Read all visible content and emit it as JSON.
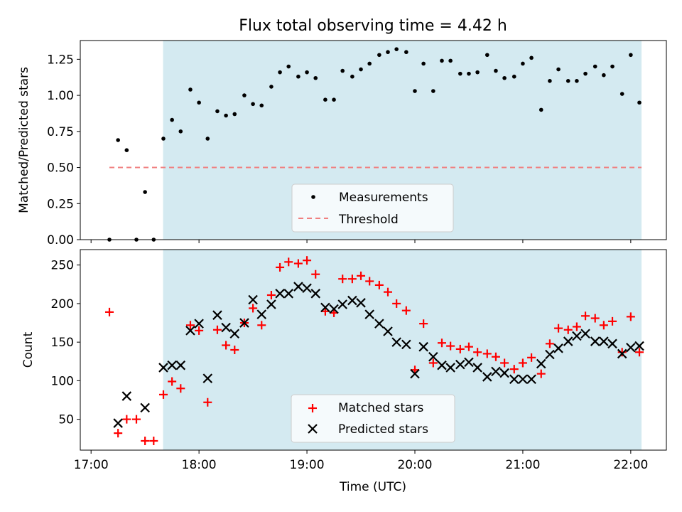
{
  "chart_data": [
    {
      "type": "scatter",
      "title": "Flux total observing time = 4.42 h",
      "xlabel": "",
      "ylabel": "Matched/Predicted stars",
      "xlim": [
        16.9,
        22.33
      ],
      "ylim": [
        0,
        1.38
      ],
      "yticks": [
        "0.00",
        "0.25",
        "0.50",
        "0.75",
        "1.00",
        "1.25"
      ],
      "ytick_values": [
        0,
        0.25,
        0.5,
        0.75,
        1.0,
        1.25
      ],
      "shaded_range": [
        17.667,
        22.1
      ],
      "shade_color": "#d4eaf1",
      "threshold": {
        "name": "Threshold",
        "value": 0.5,
        "x_range": [
          17.17,
          22.1
        ],
        "color": "#f08080"
      },
      "series": [
        {
          "name": "Measurements",
          "color": "#000000",
          "x": [
            17.17,
            17.25,
            17.33,
            17.42,
            17.5,
            17.58,
            17.67,
            17.75,
            17.83,
            17.92,
            18.0,
            18.08,
            18.17,
            18.25,
            18.33,
            18.42,
            18.5,
            18.58,
            18.67,
            18.75,
            18.83,
            18.92,
            19.0,
            19.08,
            19.17,
            19.25,
            19.33,
            19.42,
            19.5,
            19.58,
            19.67,
            19.75,
            19.83,
            19.92,
            20.0,
            20.08,
            20.17,
            20.25,
            20.33,
            20.42,
            20.5,
            20.58,
            20.67,
            20.75,
            20.83,
            20.92,
            21.0,
            21.08,
            21.17,
            21.25,
            21.33,
            21.42,
            21.5,
            21.58,
            21.67,
            21.75,
            21.83,
            21.92,
            22.0,
            22.08
          ],
          "y": [
            0.0,
            0.69,
            0.62,
            0.0,
            0.33,
            0.0,
            0.7,
            0.83,
            0.75,
            1.04,
            0.95,
            0.7,
            0.89,
            0.86,
            0.87,
            1.0,
            0.94,
            0.93,
            1.06,
            1.16,
            1.2,
            1.13,
            1.16,
            1.12,
            0.97,
            0.97,
            1.17,
            1.13,
            1.18,
            1.22,
            1.28,
            1.3,
            1.32,
            1.3,
            1.03,
            1.22,
            1.03,
            1.24,
            1.24,
            1.15,
            1.15,
            1.16,
            1.28,
            1.17,
            1.12,
            1.13,
            1.22,
            1.26,
            0.9,
            1.1,
            1.18,
            1.1,
            1.1,
            1.15,
            1.2,
            1.14,
            1.2,
            1.01,
            1.28,
            0.95
          ]
        }
      ],
      "legend": [
        "Measurements",
        "Threshold"
      ],
      "legend_position": "bottom-center"
    },
    {
      "type": "scatter",
      "title": "",
      "xlabel": "Time (UTC)",
      "ylabel": "Count",
      "xlim": [
        16.9,
        22.33
      ],
      "ylim": [
        10,
        270
      ],
      "yticks": [
        "50",
        "100",
        "150",
        "200",
        "250"
      ],
      "ytick_values": [
        50,
        100,
        150,
        200,
        250
      ],
      "xticks": [
        "17:00",
        "18:00",
        "19:00",
        "20:00",
        "21:00",
        "22:00"
      ],
      "xtick_values": [
        17,
        18,
        19,
        20,
        21,
        22
      ],
      "shaded_range": [
        17.667,
        22.1
      ],
      "shade_color": "#d4eaf1",
      "series": [
        {
          "name": "Matched stars",
          "color": "#ff0000",
          "marker": "plus",
          "x": [
            17.17,
            17.25,
            17.33,
            17.42,
            17.5,
            17.58,
            17.67,
            17.75,
            17.83,
            17.92,
            18.0,
            18.08,
            18.17,
            18.25,
            18.33,
            18.42,
            18.5,
            18.58,
            18.67,
            18.75,
            18.83,
            18.92,
            19.0,
            19.08,
            19.17,
            19.25,
            19.33,
            19.42,
            19.5,
            19.58,
            19.67,
            19.75,
            19.83,
            19.92,
            20.0,
            20.08,
            20.17,
            20.25,
            20.33,
            20.42,
            20.5,
            20.58,
            20.67,
            20.75,
            20.83,
            20.92,
            21.0,
            21.08,
            21.17,
            21.25,
            21.33,
            21.42,
            21.5,
            21.58,
            21.67,
            21.75,
            21.83,
            21.92,
            22.0,
            22.08
          ],
          "y": [
            189,
            32,
            50,
            50,
            22,
            22,
            82,
            99,
            90,
            172,
            165,
            72,
            166,
            146,
            140,
            175,
            194,
            172,
            211,
            247,
            254,
            252,
            256,
            238,
            190,
            188,
            232,
            232,
            236,
            229,
            224,
            215,
            200,
            191,
            114,
            174,
            123,
            149,
            145,
            141,
            144,
            137,
            135,
            131,
            123,
            115,
            123,
            130,
            109,
            148,
            168,
            166,
            170,
            184,
            181,
            172,
            177,
            137,
            183,
            137
          ]
        },
        {
          "name": "Predicted stars",
          "color": "#000000",
          "marker": "x",
          "x": [
            17.25,
            17.33,
            17.5,
            17.67,
            17.75,
            17.83,
            17.92,
            18.0,
            18.08,
            18.17,
            18.25,
            18.33,
            18.42,
            18.5,
            18.58,
            18.67,
            18.75,
            18.83,
            18.92,
            19.0,
            19.08,
            19.17,
            19.25,
            19.33,
            19.42,
            19.5,
            19.58,
            19.67,
            19.75,
            19.83,
            19.92,
            20.0,
            20.08,
            20.17,
            20.25,
            20.33,
            20.42,
            20.5,
            20.58,
            20.67,
            20.75,
            20.83,
            20.92,
            21.0,
            21.08,
            21.17,
            21.25,
            21.33,
            21.42,
            21.5,
            21.58,
            21.67,
            21.75,
            21.83,
            21.92,
            22.0,
            22.08
          ],
          "y": [
            45,
            80,
            65,
            117,
            120,
            120,
            165,
            174,
            103,
            185,
            169,
            161,
            175,
            205,
            186,
            199,
            213,
            213,
            222,
            220,
            213,
            195,
            193,
            199,
            204,
            201,
            186,
            174,
            164,
            150,
            147,
            109,
            144,
            131,
            120,
            117,
            121,
            124,
            117,
            105,
            112,
            110,
            102,
            102,
            102,
            122,
            134,
            142,
            151,
            158,
            161,
            151,
            151,
            148,
            135,
            143,
            145
          ]
        }
      ],
      "legend": [
        "Matched stars",
        "Predicted stars"
      ],
      "legend_position": "bottom-center"
    }
  ]
}
